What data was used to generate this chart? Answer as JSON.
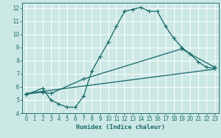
{
  "xlabel": "Humidex (Indice chaleur)",
  "xlim": [
    -0.5,
    23.5
  ],
  "ylim": [
    4,
    12.4
  ],
  "xticks": [
    0,
    1,
    2,
    3,
    4,
    5,
    6,
    7,
    8,
    9,
    10,
    11,
    12,
    13,
    14,
    15,
    16,
    17,
    18,
    19,
    20,
    21,
    22,
    23
  ],
  "yticks": [
    4,
    5,
    6,
    7,
    8,
    9,
    10,
    11,
    12
  ],
  "bg_color": "#cce8e5",
  "grid_color": "#ffffff",
  "line_color": "#1a6b6b",
  "line1_x": [
    0,
    2,
    3,
    4,
    5,
    6,
    7,
    8,
    9,
    10,
    11,
    12,
    13,
    14,
    15,
    16,
    17,
    18,
    19,
    20,
    21,
    22,
    23
  ],
  "line1_y": [
    5.4,
    5.9,
    5.0,
    4.7,
    4.45,
    4.45,
    5.3,
    7.2,
    8.3,
    9.4,
    10.6,
    11.75,
    11.9,
    12.05,
    11.75,
    11.75,
    10.6,
    9.7,
    9.0,
    8.5,
    7.9,
    7.5,
    7.4
  ],
  "line2_x": [
    0,
    2,
    3,
    7,
    19,
    20,
    23
  ],
  "line2_y": [
    5.45,
    5.6,
    5.5,
    6.6,
    8.9,
    8.5,
    7.5
  ],
  "line3_x": [
    0,
    23
  ],
  "line3_y": [
    5.5,
    7.35
  ],
  "marker": "+",
  "markersize": 4,
  "linewidth": 1.0,
  "tick_fontsize": 5.5,
  "xlabel_fontsize": 6.5
}
